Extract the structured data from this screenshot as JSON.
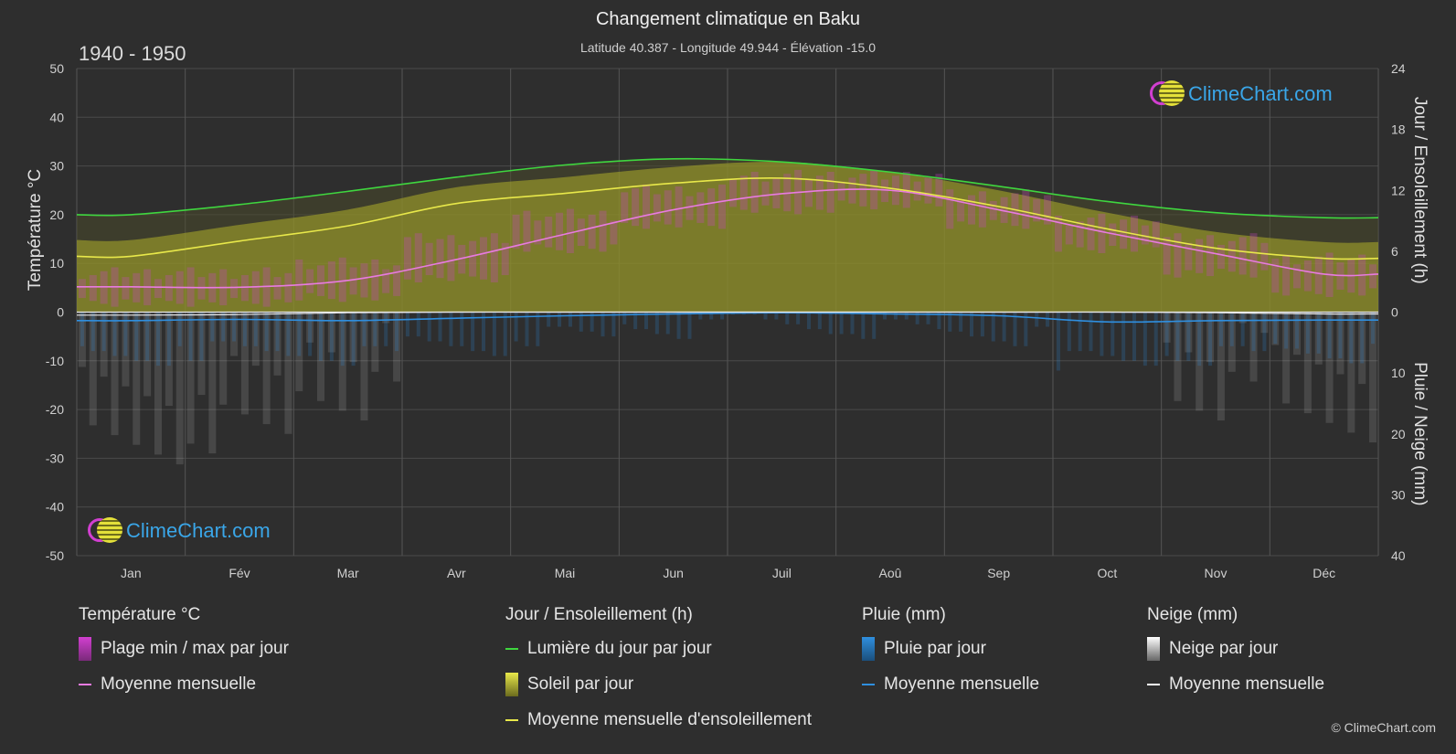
{
  "title": "Changement climatique en Baku",
  "subtitle": "Latitude 40.387 - Longitude 49.944 - Élévation -15.0",
  "period": "1940 - 1950",
  "logo_text": "ClimeChart.com",
  "copyright": "© ClimeChart.com",
  "colors": {
    "background": "#2e2e2e",
    "daylight": "#3fd63f",
    "sunshine_avg": "#e8e84a",
    "sunshine_fill": "#a5a52a",
    "temp_avg": "#e87be0",
    "temp_range": "#d13fd0",
    "rain": "#2f8fdf",
    "snow": "#cfcfcf",
    "snow_avg": "#ffffff"
  },
  "chart_data": {
    "type": "line",
    "months": [
      "Jan",
      "Fév",
      "Mar",
      "Avr",
      "Mai",
      "Jun",
      "Juil",
      "Aoû",
      "Sep",
      "Oct",
      "Nov",
      "Déc"
    ],
    "left_axis": {
      "label": "Température °C",
      "min": -50,
      "max": 50,
      "ticks": [
        50,
        40,
        30,
        20,
        10,
        0,
        -10,
        -20,
        -30,
        -40,
        -50
      ]
    },
    "right_axis_top": {
      "label": "Jour / Ensoleillement (h)",
      "min": 0,
      "max": 24,
      "ticks": [
        24,
        18,
        12,
        6,
        0
      ]
    },
    "right_axis_bottom": {
      "label": "Pluie / Neige (mm)",
      "min": 0,
      "max": 40,
      "ticks": [
        0,
        10,
        20,
        30,
        40
      ]
    },
    "series": [
      {
        "name": "Lumière du jour par jour",
        "axis": "hours",
        "values": [
          9.6,
          10.6,
          11.9,
          13.3,
          14.5,
          15.1,
          14.8,
          13.8,
          12.4,
          10.9,
          9.8,
          9.3
        ]
      },
      {
        "name": "Moyenne mensuelle d'ensoleillement",
        "axis": "hours",
        "values": [
          5.5,
          7.0,
          8.5,
          10.7,
          11.7,
          12.7,
          13.2,
          12.2,
          10.4,
          8.2,
          6.3,
          5.3
        ]
      },
      {
        "name": "Moyenne mensuelle",
        "group": "Température °C",
        "axis": "temp",
        "values": [
          5.2,
          5.1,
          6.5,
          10.8,
          16.0,
          21.0,
          24.3,
          25.0,
          21.0,
          16.3,
          12.0,
          7.8
        ]
      },
      {
        "name": "Moyenne mensuelle",
        "group": "Pluie (mm)",
        "axis": "precip",
        "values": [
          1.4,
          1.2,
          1.4,
          1.0,
          0.6,
          0.3,
          0.1,
          0.3,
          0.6,
          1.6,
          1.4,
          1.3
        ]
      },
      {
        "name": "Moyenne mensuelle",
        "group": "Neige (mm)",
        "axis": "precip",
        "values": [
          0.5,
          0.4,
          0.1,
          0,
          0,
          0,
          0,
          0,
          0,
          0,
          0.1,
          0.3
        ]
      }
    ],
    "temp_range_daily": {
      "min": [
        2,
        2,
        3,
        7,
        13,
        18,
        21,
        22,
        18,
        13,
        8,
        4
      ],
      "max": [
        8,
        8,
        10,
        15,
        20,
        25,
        28,
        28,
        24,
        19,
        15,
        11
      ]
    }
  },
  "legend": {
    "temperature": {
      "title": "Température °C",
      "items": [
        "Plage min / max par jour",
        "Moyenne mensuelle"
      ]
    },
    "sunshine": {
      "title": "Jour / Ensoleillement (h)",
      "items": [
        "Lumière du jour par jour",
        "Soleil par jour",
        "Moyenne mensuelle d'ensoleillement"
      ]
    },
    "rain": {
      "title": "Pluie (mm)",
      "items": [
        "Pluie par jour",
        "Moyenne mensuelle"
      ]
    },
    "snow": {
      "title": "Neige (mm)",
      "items": [
        "Neige par jour",
        "Moyenne mensuelle"
      ]
    }
  }
}
